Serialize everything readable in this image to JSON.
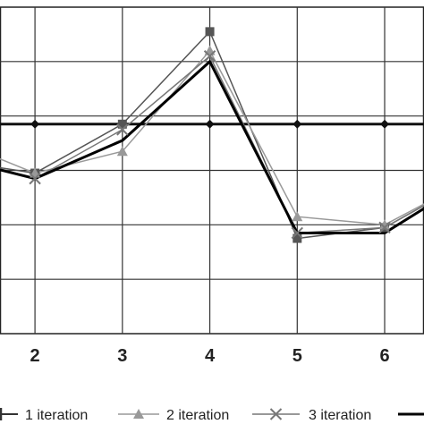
{
  "chart_data": {
    "type": "line",
    "x": [
      1,
      2,
      3,
      4,
      5,
      6,
      7
    ],
    "x_tick_labels": [
      "2",
      "3",
      "4",
      "5",
      "6"
    ],
    "xlim": [
      1.6,
      6.45
    ],
    "ylim": [
      0,
      6
    ],
    "y_gridlines": [
      1,
      2,
      3,
      4,
      5
    ],
    "grid": true,
    "legend_position": "bottom",
    "series": [
      {
        "key": "s_ref",
        "name": "",
        "color": "#111111",
        "marker": "diamond",
        "line_width": 3,
        "values": [
          3.85,
          3.85,
          3.85,
          3.85,
          3.85,
          3.85,
          3.85
        ]
      },
      {
        "key": "s_sq",
        "name": "",
        "color": "#555555",
        "marker": "square",
        "line_width": 1.5,
        "values": [
          3.2,
          2.95,
          3.85,
          5.55,
          1.75,
          1.95,
          2.85
        ]
      },
      {
        "key": "s_tri",
        "name": "2 iteration",
        "color": "#999999",
        "marker": "triangle",
        "line_width": 1.5,
        "values": [
          3.6,
          2.95,
          3.35,
          5.2,
          2.15,
          2.0,
          2.85
        ]
      },
      {
        "key": "s_x",
        "name": "3 iteration",
        "color": "#777777",
        "marker": "x",
        "line_width": 1.5,
        "values": [
          3.3,
          2.85,
          3.75,
          5.1,
          1.85,
          1.95,
          2.85
        ]
      },
      {
        "key": "s_bold",
        "name": "",
        "color": "#000000",
        "marker": "none",
        "line_width": 3,
        "values": [
          3.25,
          2.85,
          3.55,
          5.0,
          1.85,
          1.85,
          2.85
        ]
      }
    ],
    "legend": [
      {
        "label": "1 iteration",
        "marker": "plus",
        "color": "#333333",
        "line_width": 2
      },
      {
        "label": "2 iteration",
        "marker": "triangle",
        "color": "#999999",
        "line_width": 1.5
      },
      {
        "label": "3 iteration",
        "marker": "x",
        "color": "#777777",
        "line_width": 1.5
      },
      {
        "label": "",
        "marker": "none",
        "color": "#000000",
        "line_width": 3
      }
    ]
  }
}
